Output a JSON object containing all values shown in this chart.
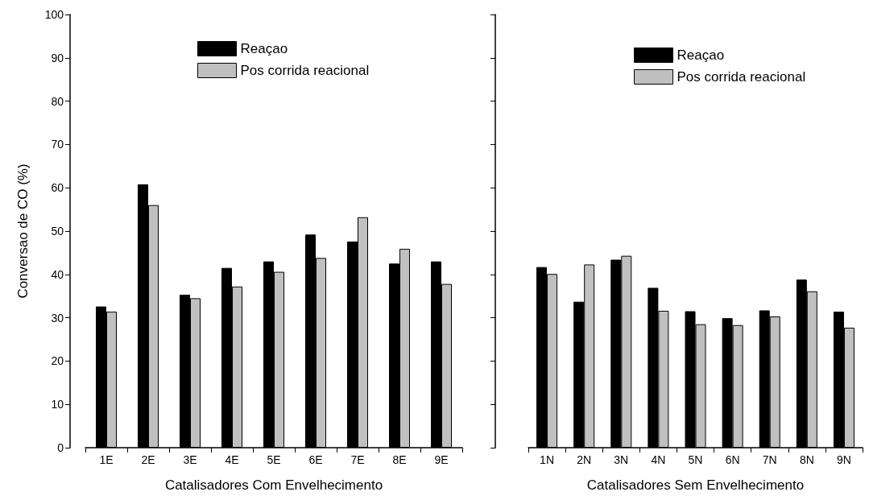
{
  "chart_data": [
    {
      "type": "bar",
      "xlabel": "Catalisadores Com Envelhecimento",
      "ylabel": "Conversao de CO (%)",
      "categories": [
        "1E",
        "2E",
        "3E",
        "4E",
        "5E",
        "6E",
        "7E",
        "8E",
        "9E"
      ],
      "series": [
        {
          "name": "Reaçao",
          "color": "#000000",
          "values": [
            32.6,
            60.8,
            35.3,
            41.5,
            43.0,
            49.2,
            47.6,
            42.5,
            43.0
          ]
        },
        {
          "name": "Pos corrida reacional",
          "color": "#c0c0c0",
          "values": [
            31.4,
            56.0,
            34.5,
            37.2,
            40.6,
            43.8,
            53.2,
            45.9,
            37.8
          ]
        }
      ],
      "ylim": [
        0,
        100
      ],
      "yticks": [
        0,
        10,
        20,
        30,
        40,
        50,
        60,
        70,
        80,
        90,
        100
      ],
      "grid": false,
      "legend": "top right"
    },
    {
      "type": "bar",
      "xlabel": "Catalisadores Sem Envelhecimento",
      "categories": [
        "1N",
        "2N",
        "3N",
        "4N",
        "5N",
        "6N",
        "7N",
        "8N",
        "9N"
      ],
      "series": [
        {
          "name": "Reaçao",
          "color": "#000000",
          "values": [
            41.7,
            33.7,
            43.4,
            36.9,
            31.5,
            29.9,
            31.7,
            38.8,
            31.4
          ]
        },
        {
          "name": "Pos corrida reacional",
          "color": "#c0c0c0",
          "values": [
            40.1,
            42.3,
            44.3,
            31.6,
            28.5,
            28.3,
            30.3,
            36.1,
            27.7
          ]
        }
      ],
      "ylim": [
        0,
        100
      ],
      "yticks": [
        0,
        10,
        20,
        30,
        40,
        50,
        60,
        70,
        80,
        90,
        100
      ],
      "tick_labels": "x",
      "grid": false,
      "legend": "top right"
    }
  ]
}
